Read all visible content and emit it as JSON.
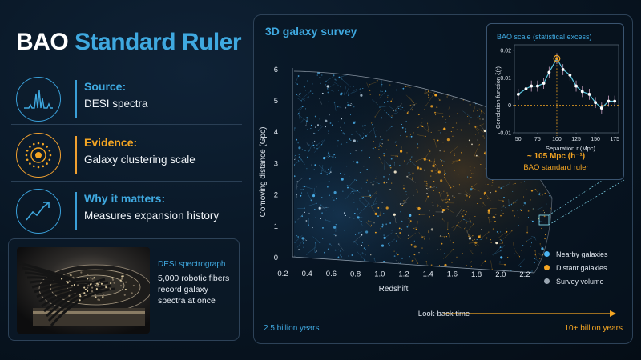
{
  "title": {
    "part1": "BAO",
    "part2": "Standard Ruler"
  },
  "info": [
    {
      "label": "Source:",
      "value": "DESI spectra",
      "icon": "spectrum-icon",
      "color": "#3fa9e0"
    },
    {
      "label": "Evidence:",
      "value": "Galaxy clustering scale",
      "icon": "ring-icon",
      "color": "#f5a623"
    },
    {
      "label": "Why it matters:",
      "value": "Measures expansion history",
      "icon": "growth-icon",
      "color": "#3fa9e0"
    }
  ],
  "desi": {
    "title": "DESI spectrograph",
    "text": "5,000 robotic fibers record galaxy spectra at once"
  },
  "survey": {
    "title": "3D galaxy survey",
    "xlabel": "Redshift",
    "ylabel": "Comoving distance (Gpc)",
    "xticks": [
      "0.2",
      "0.4",
      "0.6",
      "0.8",
      "1.0",
      "1.2",
      "1.4",
      "1.6",
      "1.8",
      "2.0",
      "2.2"
    ],
    "yticks": [
      "0",
      "1",
      "2",
      "3",
      "4",
      "5",
      "6"
    ]
  },
  "inset": {
    "title": "BAO scale (statistical excess)",
    "xlabel": "Separation  r  (Mpc)",
    "ylabel": "Correlation function  ξ(r)",
    "result": "~ 105 Mpc (h⁻¹)",
    "subtitle": "BAO standard ruler"
  },
  "legend": [
    {
      "label": "Nearby galaxies",
      "color": "#4cb3f0"
    },
    {
      "label": "Distant galaxies",
      "color": "#f5a623"
    },
    {
      "label": "Survey volume",
      "color": "#9aa6b2"
    }
  ],
  "lookback": {
    "label": "Look-back time",
    "left": "2.5 billion years",
    "right": "10+ billion years"
  },
  "chart_data": {
    "type": "scatter",
    "title": "BAO scale (statistical excess)",
    "xlabel": "Separation  r  (Mpc)",
    "ylabel": "Correlation function  ξ(r)",
    "xlim": [
      45,
      180
    ],
    "ylim": [
      -0.01,
      0.022
    ],
    "xticks": [
      50,
      75,
      100,
      125,
      150,
      175
    ],
    "yticks": [
      -0.01,
      0,
      0.01,
      0.02
    ],
    "series": [
      {
        "x": [
          50,
          60,
          67,
          75,
          83,
          90,
          100,
          108,
          117,
          125,
          133,
          142,
          150,
          158,
          167,
          175
        ],
        "y": [
          0.004,
          0.006,
          0.007,
          0.007,
          0.008,
          0.012,
          0.017,
          0.013,
          0.011,
          0.007,
          0.005,
          0.004,
          0.001,
          -0.001,
          0.0015,
          0.0015
        ],
        "err": [
          0.002,
          0.002,
          0.002,
          0.002,
          0.002,
          0.002,
          0.002,
          0.002,
          0.002,
          0.002,
          0.002,
          0.002,
          0.002,
          0.002,
          0.002,
          0.002
        ]
      }
    ],
    "peak_x": 100
  }
}
